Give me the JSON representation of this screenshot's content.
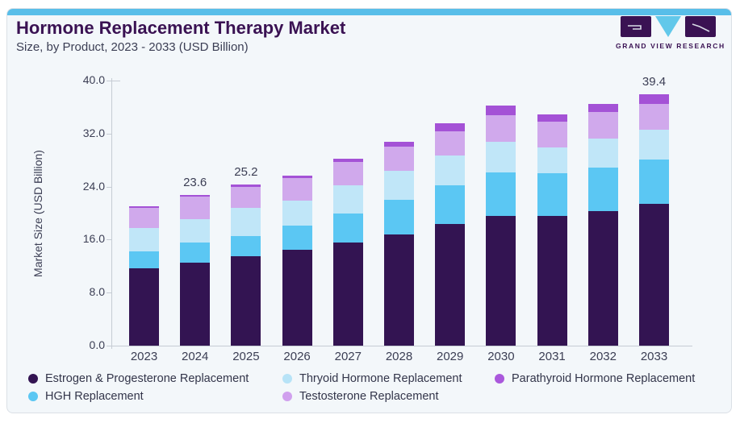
{
  "header": {
    "title": "Hormone Replacement Therapy Market",
    "subtitle": "Size, by Product, 2023 - 2033 (USD Billion)"
  },
  "logo": {
    "brand": "GRAND VIEW RESEARCH",
    "colors": {
      "square": "#3a1253",
      "triangle": "#62c8ea"
    }
  },
  "chart_data": {
    "type": "bar",
    "stacked": true,
    "title": "Hormone Replacement Therapy Market Size, by Product, 2023 - 2033 (USD Billion)",
    "categories": [
      "2023",
      "2024",
      "2025",
      "2026",
      "2027",
      "2028",
      "2029",
      "2030",
      "2031",
      "2032",
      "2033"
    ],
    "series": [
      {
        "name": "Estrogen & Progesterone Replacement",
        "color": "#331452",
        "values": [
          12.2,
          13.0,
          14.0,
          15.1,
          16.2,
          17.4,
          19.1,
          20.3,
          20.4,
          21.1,
          22.2
        ]
      },
      {
        "name": "HGH Replacement",
        "color": "#5bc7f3",
        "values": [
          2.6,
          3.2,
          3.2,
          3.8,
          4.5,
          5.5,
          6.1,
          6.8,
          6.7,
          6.8,
          7.0
        ]
      },
      {
        "name": "Thryoid Hormone Replacement",
        "color": "#c0e6f8",
        "values": [
          3.7,
          3.6,
          4.4,
          3.9,
          4.4,
          4.6,
          4.6,
          4.8,
          4.0,
          4.6,
          4.7
        ]
      },
      {
        "name": "Testosterone Replacement",
        "color": "#d0a9ec",
        "values": [
          3.1,
          3.5,
          3.3,
          3.5,
          3.7,
          3.8,
          3.9,
          4.2,
          4.0,
          4.1,
          4.0
        ]
      },
      {
        "name": "Parathyroid Hormone Replacement",
        "color": "#a452d6",
        "values": [
          0.3,
          0.3,
          0.3,
          0.4,
          0.5,
          0.7,
          1.2,
          1.5,
          1.2,
          1.3,
          1.5
        ]
      }
    ],
    "totals": [
      21.9,
      23.6,
      25.2,
      26.7,
      29.3,
      32.0,
      34.9,
      37.6,
      36.3,
      37.9,
      39.4
    ],
    "bar_labels": {
      "2024": "23.6",
      "2025": "25.2",
      "2033": "39.4"
    },
    "ylabel": "Market Size (USD Billion)",
    "yticks": [
      "0.0",
      "8.0",
      "16.0",
      "24.0",
      "32.0",
      "40.0"
    ],
    "ylim": [
      0,
      40
    ],
    "grid": false,
    "legend_position": "bottom"
  },
  "legend": {
    "items": [
      {
        "label": "Estrogen & Progesterone Replacement",
        "color": "#331452"
      },
      {
        "label": "Thryoid Hormone Replacement",
        "color": "#b7e3f7"
      },
      {
        "label": "Parathyroid Hormone Replacement",
        "color": "#aa58dc"
      },
      {
        "label": "HGH Replacement",
        "color": "#5bc7f3"
      },
      {
        "label": "Testosterone Replacement",
        "color": "#d0a0ee"
      }
    ]
  }
}
